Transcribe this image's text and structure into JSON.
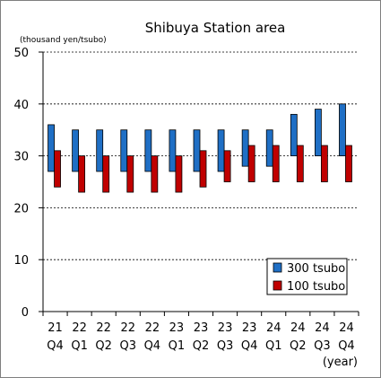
{
  "chart_data": {
    "type": "bar",
    "title": "Shibuya Station  area",
    "ylabel": "(thousand yen/tsubo)",
    "xlabel": "(year)",
    "ylim": [
      0,
      50
    ],
    "yticks": [
      0,
      10,
      20,
      30,
      40,
      50
    ],
    "grid": "horizontal-dotted",
    "legend_position": "bottom-right",
    "categories": [
      {
        "year": "21",
        "quarter": "Q4"
      },
      {
        "year": "22",
        "quarter": "Q1"
      },
      {
        "year": "22",
        "quarter": "Q2"
      },
      {
        "year": "22",
        "quarter": "Q3"
      },
      {
        "year": "22",
        "quarter": "Q4"
      },
      {
        "year": "23",
        "quarter": "Q1"
      },
      {
        "year": "23",
        "quarter": "Q2"
      },
      {
        "year": "23",
        "quarter": "Q3"
      },
      {
        "year": "23",
        "quarter": "Q4"
      },
      {
        "year": "24",
        "quarter": "Q1"
      },
      {
        "year": "24",
        "quarter": "Q2"
      },
      {
        "year": "24",
        "quarter": "Q3"
      },
      {
        "year": "24",
        "quarter": "Q4"
      }
    ],
    "series": [
      {
        "name": "300 tsubo",
        "color": "#1F6FC5",
        "low": [
          27,
          27,
          27,
          27,
          27,
          27,
          27,
          27,
          28,
          28,
          30,
          30,
          30
        ],
        "high": [
          36,
          35,
          35,
          35,
          35,
          35,
          35,
          35,
          35,
          35,
          38,
          39,
          40
        ]
      },
      {
        "name": "100 tsubo",
        "color": "#C00000",
        "low": [
          24,
          23,
          23,
          23,
          23,
          23,
          24,
          25,
          25,
          25,
          25,
          25,
          25
        ],
        "high": [
          31,
          30,
          30,
          30,
          30,
          30,
          31,
          31,
          32,
          32,
          32,
          32,
          32
        ]
      }
    ]
  }
}
